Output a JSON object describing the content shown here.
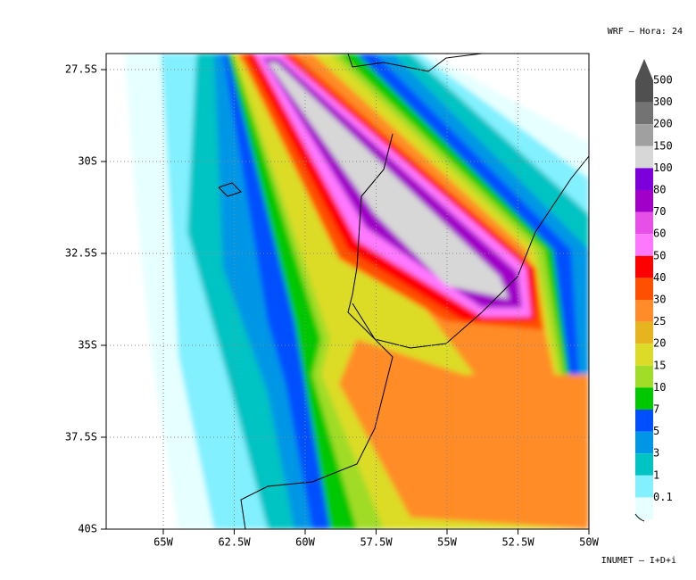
{
  "header": "WRF – Hora: 24",
  "footer": "INUMET – I+D+i",
  "map": {
    "lat_ticks": [
      "27.5S",
      "30S",
      "32.5S",
      "35S",
      "37.5S",
      "40S"
    ],
    "lon_ticks": [
      "65W",
      "62.5W",
      "60W",
      "57.5W",
      "55W",
      "52.5W",
      "50W"
    ],
    "grid": true
  },
  "legend": {
    "levels": [
      {
        "label": "500",
        "color": "#505050"
      },
      {
        "label": "300",
        "color": "#737373"
      },
      {
        "label": "200",
        "color": "#a0a0a0"
      },
      {
        "label": "150",
        "color": "#d7d7d7"
      },
      {
        "label": "100",
        "color": "#7d00dc"
      },
      {
        "label": "80",
        "color": "#a000c8"
      },
      {
        "label": "70",
        "color": "#e650e6"
      },
      {
        "label": "60",
        "color": "#ff78ff"
      },
      {
        "label": "50",
        "color": "#ff0000"
      },
      {
        "label": "40",
        "color": "#ff5000"
      },
      {
        "label": "30",
        "color": "#ff8c28"
      },
      {
        "label": "25",
        "color": "#e6b41e"
      },
      {
        "label": "20",
        "color": "#dcdc28"
      },
      {
        "label": "15",
        "color": "#a0dc28"
      },
      {
        "label": "10",
        "color": "#00c800"
      },
      {
        "label": "7",
        "color": "#0050ff"
      },
      {
        "label": "5",
        "color": "#0096e6"
      },
      {
        "label": "3",
        "color": "#00c3c3"
      },
      {
        "label": "1",
        "color": "#82f0ff"
      },
      {
        "label": "0.1",
        "color": "#e6ffff"
      }
    ]
  }
}
